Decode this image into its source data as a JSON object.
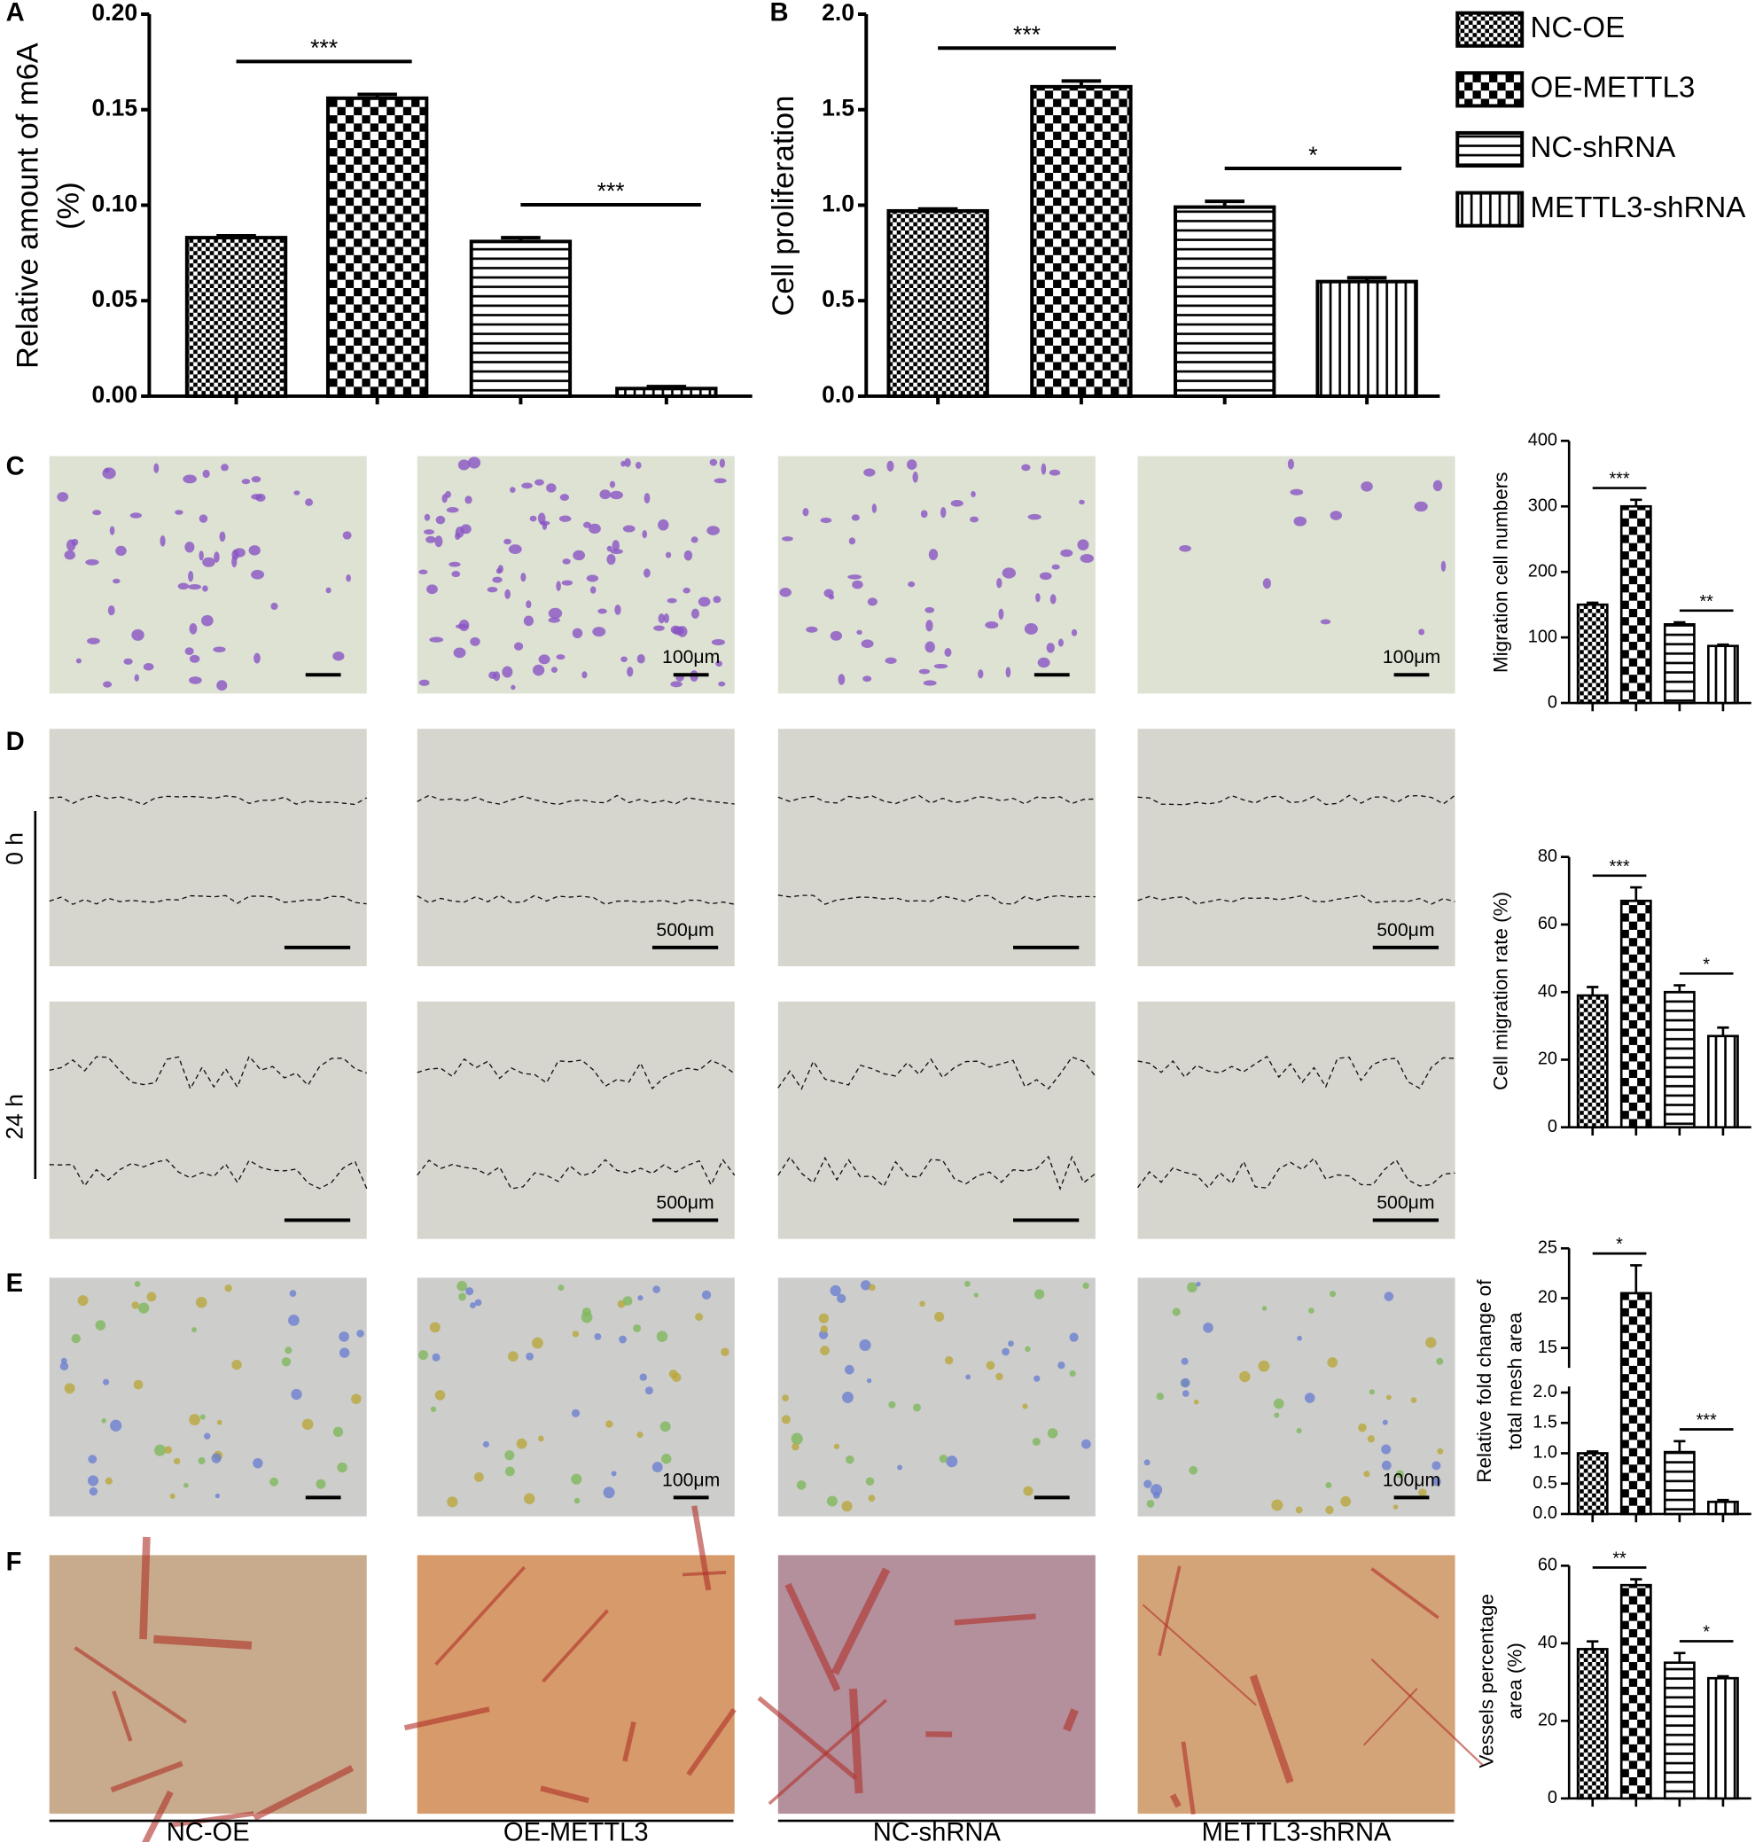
{
  "panel_labels": [
    "A",
    "B",
    "C",
    "D",
    "E",
    "F"
  ],
  "legend": [
    {
      "name": "NC-OE",
      "pattern": "checker-small"
    },
    {
      "name": "OE-METTL3",
      "pattern": "checker-large"
    },
    {
      "name": "NC-shRNA",
      "pattern": "horizontal"
    },
    {
      "name": "METTL3-shRNA",
      "pattern": "vertical"
    }
  ],
  "micrographs": {
    "scale_labels": {
      "C": "100μm",
      "D": "500μm",
      "E": "100μm"
    },
    "time_labels": [
      "0 h",
      "24 h"
    ]
  },
  "chart_data": [
    {
      "type": "bar",
      "y_label": [
        "Relative amount of m6A",
        "(%)"
      ],
      "values": [
        0.083,
        0.156,
        0.081,
        0.004
      ],
      "errors": [
        0.001,
        0.002,
        0.002,
        0.001
      ],
      "ylim": [
        0,
        0.2
      ],
      "yticks": [
        {
          "value": 0,
          "label": "0.00"
        },
        0.05,
        {
          "value": 0.1,
          "label": "0.10"
        },
        0.15,
        {
          "value": 0.2,
          "label": "0.20"
        }
      ],
      "significance": [
        "***",
        "***"
      ]
    },
    {
      "type": "bar",
      "y_label": [
        "Cell proliferation"
      ],
      "values": [
        0.97,
        1.62,
        0.99,
        0.6
      ],
      "errors": [
        0.01,
        0.03,
        0.03,
        0.02
      ],
      "ylim": [
        0,
        2
      ],
      "yticks": [
        {
          "value": 0,
          "label": "0.0"
        },
        0.5,
        {
          "value": 1,
          "label": "1.0"
        },
        1.5,
        {
          "value": 2,
          "label": "2.0"
        }
      ],
      "significance": [
        "***",
        "*"
      ]
    },
    {
      "type": "bar",
      "y_label": [
        "Migration cell numbers"
      ],
      "values": [
        150,
        300,
        120,
        87
      ],
      "errors": [
        3,
        10,
        3,
        2
      ],
      "ylim": [
        0,
        400
      ],
      "yticks": [
        0,
        100,
        200,
        300,
        400
      ],
      "significance": [
        "***",
        "**"
      ]
    },
    {
      "type": "bar",
      "y_label": [
        "Cell migration rate (%)"
      ],
      "values": [
        39,
        67,
        40,
        27
      ],
      "errors": [
        2.5,
        4,
        2,
        2.5
      ],
      "ylim": [
        0,
        80
      ],
      "yticks": [
        0,
        20,
        40,
        60,
        80
      ],
      "significance": [
        "***",
        "*"
      ]
    },
    {
      "type": "bar",
      "y_label": [
        "Relative fold change of",
        "total mesh area"
      ],
      "values": [
        1.0,
        20.5,
        1.02,
        0.2
      ],
      "errors": [
        0.03,
        2.8,
        0.18,
        0.03
      ],
      "ylim": [
        0,
        25
      ],
      "axis_break": [
        2.1,
        13
      ],
      "yticks": [
        {
          "value": 0,
          "label": "0.0"
        },
        0.5,
        {
          "value": 1,
          "label": "1.0"
        },
        1.5,
        {
          "value": 2,
          "label": "2.0"
        },
        15,
        20,
        25
      ],
      "significance": [
        "*",
        "***"
      ]
    },
    {
      "type": "bar",
      "y_label": [
        "Vessels percentage",
        "area (%)"
      ],
      "values": [
        38.5,
        55,
        35,
        31
      ],
      "errors": [
        2,
        1.5,
        2.5,
        0.5
      ],
      "ylim": [
        0,
        60
      ],
      "yticks": [
        0,
        20,
        40,
        60
      ],
      "significance": [
        "**",
        "*"
      ]
    }
  ]
}
